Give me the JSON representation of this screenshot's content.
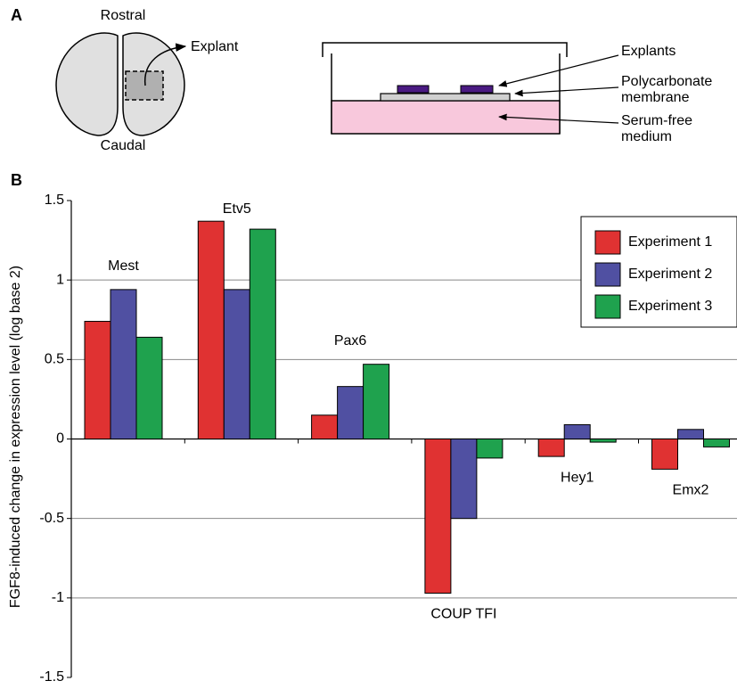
{
  "panels": {
    "a": "A",
    "b": "B"
  },
  "brain": {
    "top": "Rostral",
    "bottom": "Caudal",
    "explant": "Explant"
  },
  "dish": {
    "explants": "Explants",
    "membrane": [
      "Polycarbonate",
      "membrane"
    ],
    "medium": [
      "Serum-free",
      "medium"
    ]
  },
  "chart_data": {
    "type": "bar",
    "ylabel": "FGF8-induced change in expression level (log base 2)",
    "categories": [
      "Mest",
      "Etv5",
      "Pax6",
      "COUP TFI",
      "Hey1",
      "Emx2"
    ],
    "series": [
      {
        "name": "Experiment 1",
        "color": "#e03232",
        "values": [
          0.74,
          1.37,
          0.15,
          -0.97,
          -0.11,
          -0.19
        ]
      },
      {
        "name": "Experiment 2",
        "color": "#5050a2",
        "values": [
          0.94,
          0.94,
          0.33,
          -0.5,
          0.09,
          0.06
        ]
      },
      {
        "name": "Experiment 3",
        "color": "#1fa24e",
        "values": [
          0.64,
          1.32,
          0.47,
          -0.12,
          -0.02,
          -0.05
        ]
      }
    ],
    "ylim": [
      -1.5,
      1.5
    ],
    "yticks": [
      -1.5,
      -1,
      -0.5,
      0,
      0.5,
      1,
      1.5
    ],
    "grid": true,
    "legend": "upper right"
  }
}
